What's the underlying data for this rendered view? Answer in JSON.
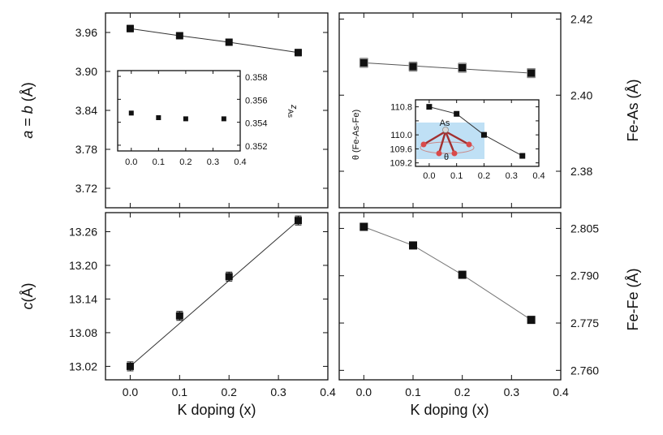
{
  "chart_data": [
    {
      "id": "a_lattice",
      "type": "scatter",
      "ylabel_parts": [
        "a",
        " = ",
        "b",
        " (Å)"
      ],
      "x": [
        0.0,
        0.1,
        0.2,
        0.34
      ],
      "values": [
        3.966,
        3.955,
        3.945,
        3.929
      ],
      "errors": [
        0.005,
        0.005,
        0.005,
        0.005
      ],
      "fit": [
        [
          0.0,
          3.966
        ],
        [
          0.1,
          3.955
        ],
        [
          0.2,
          3.945
        ],
        [
          0.34,
          3.929
        ]
      ],
      "xlim": [
        -0.05,
        0.4
      ],
      "ylim": [
        3.69,
        3.99
      ],
      "yticks": [
        "3.72",
        "3.78",
        "3.84",
        "3.90",
        "3.96"
      ],
      "ytick_values": [
        3.72,
        3.78,
        3.84,
        3.9,
        3.96
      ],
      "yaxis_side": "left"
    },
    {
      "id": "z_as_inset",
      "type": "scatter",
      "ylabel_main": "z",
      "ylabel_sub": "As",
      "x": [
        0.0,
        0.1,
        0.2,
        0.34
      ],
      "values": [
        0.3548,
        0.3544,
        0.3543,
        0.3543
      ],
      "xlim": [
        -0.05,
        0.4
      ],
      "ylim": [
        0.3515,
        0.3585
      ],
      "xticks": [
        "0.0",
        "0.1",
        "0.2",
        "0.3",
        "0.4"
      ],
      "xtick_values": [
        0.0,
        0.1,
        0.2,
        0.3,
        0.4
      ],
      "yticks": [
        "0.352",
        "0.354",
        "0.356",
        "0.358"
      ],
      "ytick_values": [
        0.352,
        0.354,
        0.356,
        0.358
      ],
      "yaxis_side": "right"
    },
    {
      "id": "fe_as",
      "type": "scatter",
      "ylabel": "Fe-As (Å)",
      "x": [
        0.0,
        0.1,
        0.2,
        0.34
      ],
      "values": [
        2.4085,
        2.4075,
        2.4072,
        2.4058
      ],
      "errors": [
        0.0012,
        0.0012,
        0.0012,
        0.0012
      ],
      "fit": [
        [
          0.0,
          2.4085
        ],
        [
          0.34,
          2.4058
        ]
      ],
      "xlim": [
        -0.05,
        0.4
      ],
      "ylim": [
        2.3704,
        2.4216
      ],
      "yticks": [
        "2.38",
        "2.40",
        "2.42"
      ],
      "ytick_values": [
        2.38,
        2.4,
        2.42
      ],
      "yaxis_side": "right"
    },
    {
      "id": "theta_inset",
      "type": "scatter",
      "ylabel": "θ (Fe-As-Fe)",
      "x": [
        0.0,
        0.1,
        0.2,
        0.34
      ],
      "values": [
        110.8,
        110.6,
        110.0,
        109.4
      ],
      "fit": [
        [
          0.0,
          110.8
        ],
        [
          0.1,
          110.6
        ],
        [
          0.2,
          110.0
        ],
        [
          0.34,
          109.4
        ]
      ],
      "xlim": [
        -0.05,
        0.4
      ],
      "ylim": [
        109.1,
        111.0
      ],
      "xticks": [
        "0.0",
        "0.1",
        "0.2",
        "0.3",
        "0.4"
      ],
      "xtick_values": [
        0.0,
        0.1,
        0.2,
        0.3,
        0.4
      ],
      "yticks": [
        "109.2",
        "109.6",
        "110.0",
        "110.4",
        "110.8"
      ],
      "ytick_values": [
        109.2,
        109.6,
        110.0,
        110.4,
        110.8
      ],
      "yaxis_side": "left",
      "diagram_labels": {
        "center": "As",
        "angle": "θ"
      }
    },
    {
      "id": "c_lattice",
      "type": "scatter",
      "ylabel_parts": [
        "c",
        "(Å)"
      ],
      "xlabel": "K doping (x)",
      "x": [
        0.0,
        0.1,
        0.2,
        0.34
      ],
      "values": [
        13.02,
        13.11,
        13.18,
        13.28
      ],
      "errors": [
        0.008,
        0.008,
        0.008,
        0.008
      ],
      "fit": [
        [
          0.0,
          13.02
        ],
        [
          0.34,
          13.28
        ]
      ],
      "xlim": [
        -0.05,
        0.4
      ],
      "ylim": [
        12.996,
        13.294
      ],
      "xticks": [
        "0.0",
        "0.1",
        "0.2",
        "0.3",
        "0.4"
      ],
      "xtick_values": [
        0.0,
        0.1,
        0.2,
        0.3,
        0.4
      ],
      "yticks": [
        "13.02",
        "13.08",
        "13.14",
        "13.20",
        "13.26"
      ],
      "ytick_values": [
        13.02,
        13.08,
        13.14,
        13.2,
        13.26
      ],
      "yaxis_side": "left"
    },
    {
      "id": "fe_fe",
      "type": "scatter",
      "ylabel": "Fe-Fe (Å)",
      "xlabel": "K doping (x)",
      "x": [
        0.0,
        0.1,
        0.2,
        0.34
      ],
      "values": [
        2.8055,
        2.7996,
        2.7903,
        2.776
      ],
      "fit": [
        [
          0.0,
          2.8055
        ],
        [
          0.1,
          2.7996
        ],
        [
          0.2,
          2.7903
        ],
        [
          0.34,
          2.776
        ]
      ],
      "xlim": [
        -0.05,
        0.4
      ],
      "ylim": [
        2.757,
        2.81
      ],
      "xticks": [
        "0.0",
        "0.1",
        "0.2",
        "0.3",
        "0.4"
      ],
      "xtick_values": [
        0.0,
        0.1,
        0.2,
        0.3,
        0.4
      ],
      "yticks": [
        "2.760",
        "2.775",
        "2.790",
        "2.805"
      ],
      "ytick_values": [
        2.76,
        2.775,
        2.79,
        2.805
      ],
      "yaxis_side": "right"
    }
  ]
}
